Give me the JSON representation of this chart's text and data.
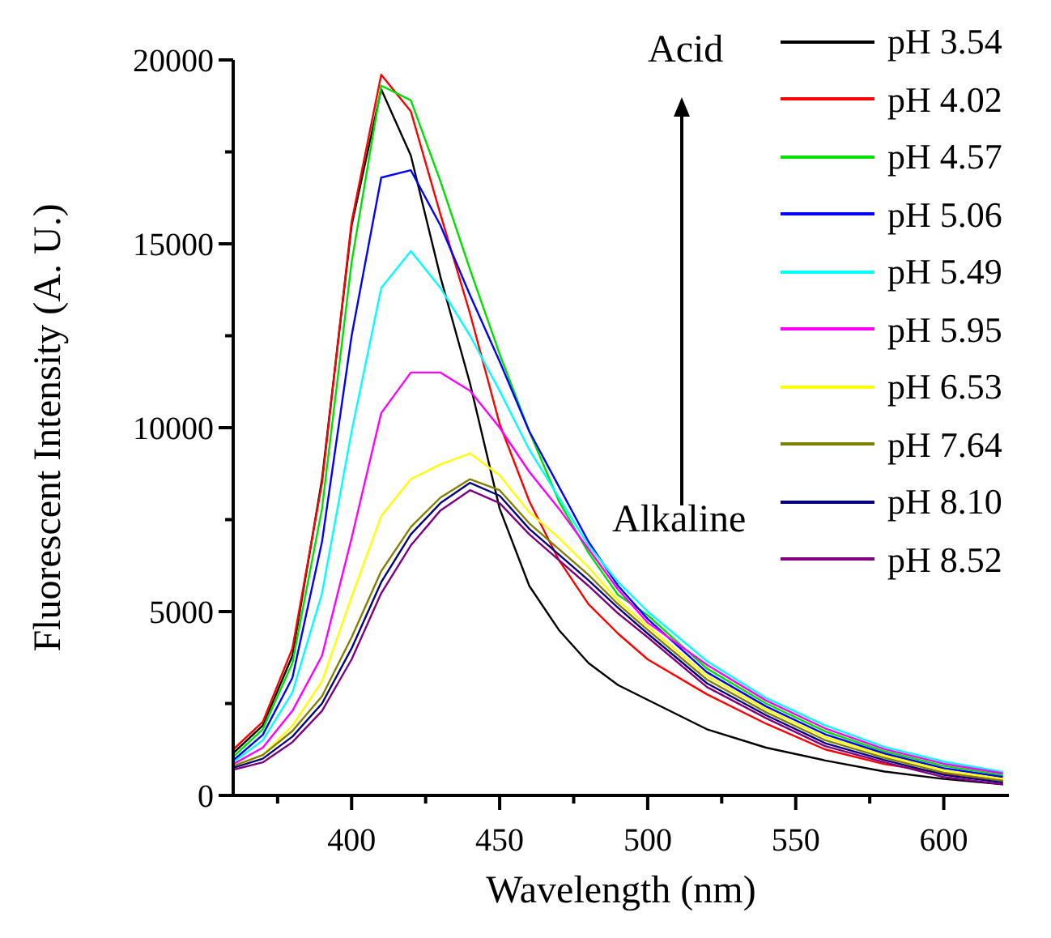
{
  "chart_data": {
    "type": "line",
    "xlabel": "Wavelength (nm)",
    "ylabel": "Fluorescent Intensity (A. U.)",
    "x": [
      360,
      370,
      380,
      390,
      400,
      410,
      420,
      430,
      440,
      450,
      460,
      470,
      480,
      490,
      500,
      520,
      540,
      560,
      580,
      600,
      620
    ],
    "series": [
      {
        "name": "pH 3.54",
        "color": "#000000",
        "values": [
          1150,
          1900,
          3800,
          8600,
          15500,
          19200,
          17400,
          14100,
          11200,
          7800,
          5700,
          4500,
          3600,
          3000,
          2600,
          1800,
          1300,
          950,
          650,
          450,
          300
        ]
      },
      {
        "name": "pH 4.02",
        "color": "#ff0000",
        "values": [
          1250,
          2000,
          4000,
          8500,
          15600,
          19600,
          18600,
          15800,
          13100,
          10100,
          8000,
          6400,
          5200,
          4400,
          3700,
          2750,
          1950,
          1250,
          850,
          600,
          400
        ]
      },
      {
        "name": "pH 4.57",
        "color": "#00e000",
        "values": [
          1050,
          1800,
          3600,
          7800,
          14500,
          19300,
          18900,
          16700,
          14300,
          12000,
          9900,
          8000,
          6600,
          5450,
          4900,
          3450,
          2500,
          1740,
          1200,
          800,
          550
        ]
      },
      {
        "name": "pH 5.06",
        "color": "#0000ff",
        "values": [
          950,
          1650,
          3200,
          6900,
          12500,
          16800,
          17000,
          15500,
          13600,
          11800,
          9900,
          8400,
          6900,
          5700,
          4800,
          3350,
          2420,
          1660,
          1140,
          740,
          500
        ]
      },
      {
        "name": "pH 5.49",
        "color": "#00ffff",
        "values": [
          900,
          1500,
          2800,
          5500,
          9900,
          13800,
          14800,
          13800,
          12500,
          11000,
          9400,
          8100,
          6800,
          5800,
          5000,
          3650,
          2650,
          1900,
          1320,
          920,
          640
        ]
      },
      {
        "name": "pH 5.95",
        "color": "#ff00ff",
        "values": [
          850,
          1300,
          2300,
          3800,
          7000,
          10400,
          11500,
          11500,
          11000,
          10000,
          8800,
          7800,
          6700,
          5600,
          4700,
          3550,
          2580,
          1820,
          1260,
          860,
          600
        ]
      },
      {
        "name": "pH 6.53",
        "color": "#ffff00",
        "values": [
          800,
          1100,
          1900,
          3100,
          5400,
          7600,
          8600,
          9000,
          9300,
          8700,
          7700,
          7000,
          6200,
          5300,
          4600,
          3250,
          2340,
          1580,
          1080,
          680,
          450
        ]
      },
      {
        "name": "pH 7.64",
        "color": "#808000",
        "values": [
          800,
          1100,
          1750,
          2700,
          4300,
          6100,
          7300,
          8100,
          8600,
          8300,
          7400,
          6700,
          6000,
          5200,
          4500,
          3150,
          2260,
          1500,
          1020,
          620,
          400
        ]
      },
      {
        "name": "pH 8.10",
        "color": "#000080",
        "values": [
          750,
          1000,
          1600,
          2500,
          4000,
          5800,
          7100,
          7950,
          8500,
          8150,
          7250,
          6550,
          5850,
          5100,
          4400,
          3050,
          2180,
          1420,
          960,
          560,
          350
        ]
      },
      {
        "name": "pH 8.52",
        "color": "#800080",
        "values": [
          700,
          900,
          1450,
          2300,
          3700,
          5500,
          6800,
          7750,
          8300,
          7950,
          7100,
          6400,
          5700,
          4950,
          4300,
          2950,
          2100,
          1340,
          900,
          500,
          300
        ]
      }
    ],
    "xlim": [
      360,
      622
    ],
    "xticks": [
      {
        "value": 375,
        "label": null
      },
      400,
      {
        "value": 425,
        "label": null
      },
      450,
      {
        "value": 475,
        "label": null
      },
      500,
      {
        "value": 525,
        "label": null
      },
      550,
      {
        "value": 575,
        "label": null
      },
      600
    ],
    "ylim": [
      0,
      20000
    ],
    "yticks": [
      0,
      {
        "value": 2500,
        "label": null
      },
      5000,
      {
        "value": 7500,
        "label": null
      },
      10000,
      {
        "value": 12500,
        "label": null
      },
      15000,
      {
        "value": 17500,
        "label": null
      },
      20000
    ],
    "legend": "top right",
    "grid": false,
    "marker": "none",
    "line_style": "solid",
    "annotations": [
      "Acid",
      "Alkaline"
    ]
  }
}
